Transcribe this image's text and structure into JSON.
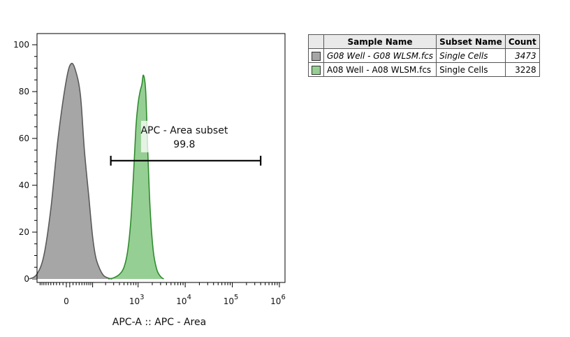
{
  "chart_data": {
    "type": "area",
    "xlabel": "APC-A :: APC - Area",
    "ylabel": "",
    "ylim": [
      0,
      100
    ],
    "y_ticks": [
      0,
      20,
      40,
      60,
      80,
      100
    ],
    "x_scale": "biexponential",
    "x_ticks": [
      {
        "value": 0,
        "label": "0",
        "exp": ""
      },
      {
        "value": 1000,
        "label": "10",
        "exp": "3"
      },
      {
        "value": 10000,
        "label": "10",
        "exp": "4"
      },
      {
        "value": 100000,
        "label": "10",
        "exp": "5"
      },
      {
        "value": 1000000,
        "label": "10",
        "exp": "6"
      }
    ],
    "series": [
      {
        "name": "G08 Well - G08 WLSM.fcs",
        "color": "#a6a6a6",
        "edge": "#5a5a5a",
        "x": [
          -180,
          -120,
          -80,
          -50,
          -25,
          0,
          15,
          30,
          45,
          60,
          80,
          100,
          120,
          150,
          180,
          220,
          280
        ],
        "y": [
          0,
          2,
          10,
          30,
          60,
          85,
          92,
          88,
          78,
          55,
          35,
          18,
          9,
          4,
          1.5,
          0.5,
          0
        ]
      },
      {
        "name": "A08 Well - A08 WLSM.fcs",
        "color": "#96cf93",
        "edge": "#2e8b2e",
        "x": [
          230,
          300,
          400,
          500,
          600,
          700,
          800,
          900,
          1000,
          1100,
          1200,
          1300,
          1450,
          1600,
          1800,
          2100,
          2500,
          3000,
          3500
        ],
        "y": [
          0,
          0.5,
          2,
          5,
          12,
          25,
          45,
          65,
          75,
          80,
          83,
          87,
          80,
          55,
          30,
          12,
          4,
          1,
          0
        ]
      }
    ],
    "gate": {
      "name": "APC - Area subset",
      "value": "99.8",
      "x_range": [
        260,
        400000
      ],
      "y": 50.5
    }
  },
  "legend": {
    "headers": [
      "Sample Name",
      "Subset Name",
      "Count"
    ],
    "rows": [
      {
        "color": "#a6a6a6",
        "sample": "G08 Well - G08 WLSM.fcs",
        "subset": "Single Cells",
        "count": "3473"
      },
      {
        "color": "#96cf93",
        "sample": "A08 Well - A08 WLSM.fcs",
        "subset": "Single Cells",
        "count": "3228"
      }
    ]
  }
}
